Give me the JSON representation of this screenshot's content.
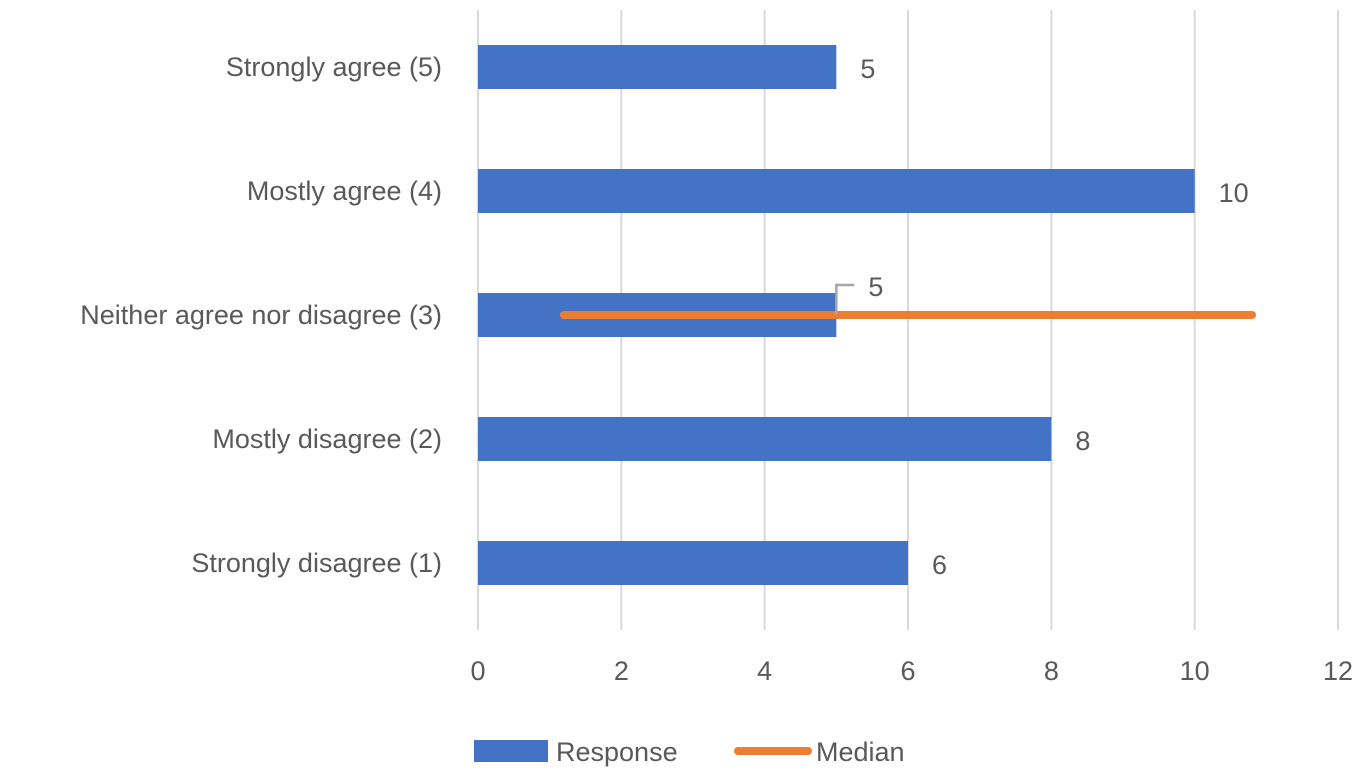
{
  "chart_data": {
    "type": "bar",
    "orientation": "horizontal",
    "categories": [
      "Strongly agree (5)",
      "Mostly agree (4)",
      "Neither agree nor disagree (3)",
      "Mostly disagree (2)",
      "Strongly disagree (1)"
    ],
    "series": [
      {
        "name": "Response",
        "type": "bar",
        "values": [
          5,
          10,
          5,
          8,
          6
        ],
        "color": "#4472C4"
      },
      {
        "name": "Median",
        "type": "line",
        "category": "Neither agree nor disagree (3)",
        "x_range": [
          1.2,
          10.8
        ],
        "color": "#ED7D31"
      }
    ],
    "xlim": [
      0,
      12
    ],
    "xticks": [
      0,
      2,
      4,
      6,
      8,
      10,
      12
    ],
    "grid": true,
    "legend": "bottom",
    "title": "",
    "xlabel": "",
    "ylabel": ""
  }
}
